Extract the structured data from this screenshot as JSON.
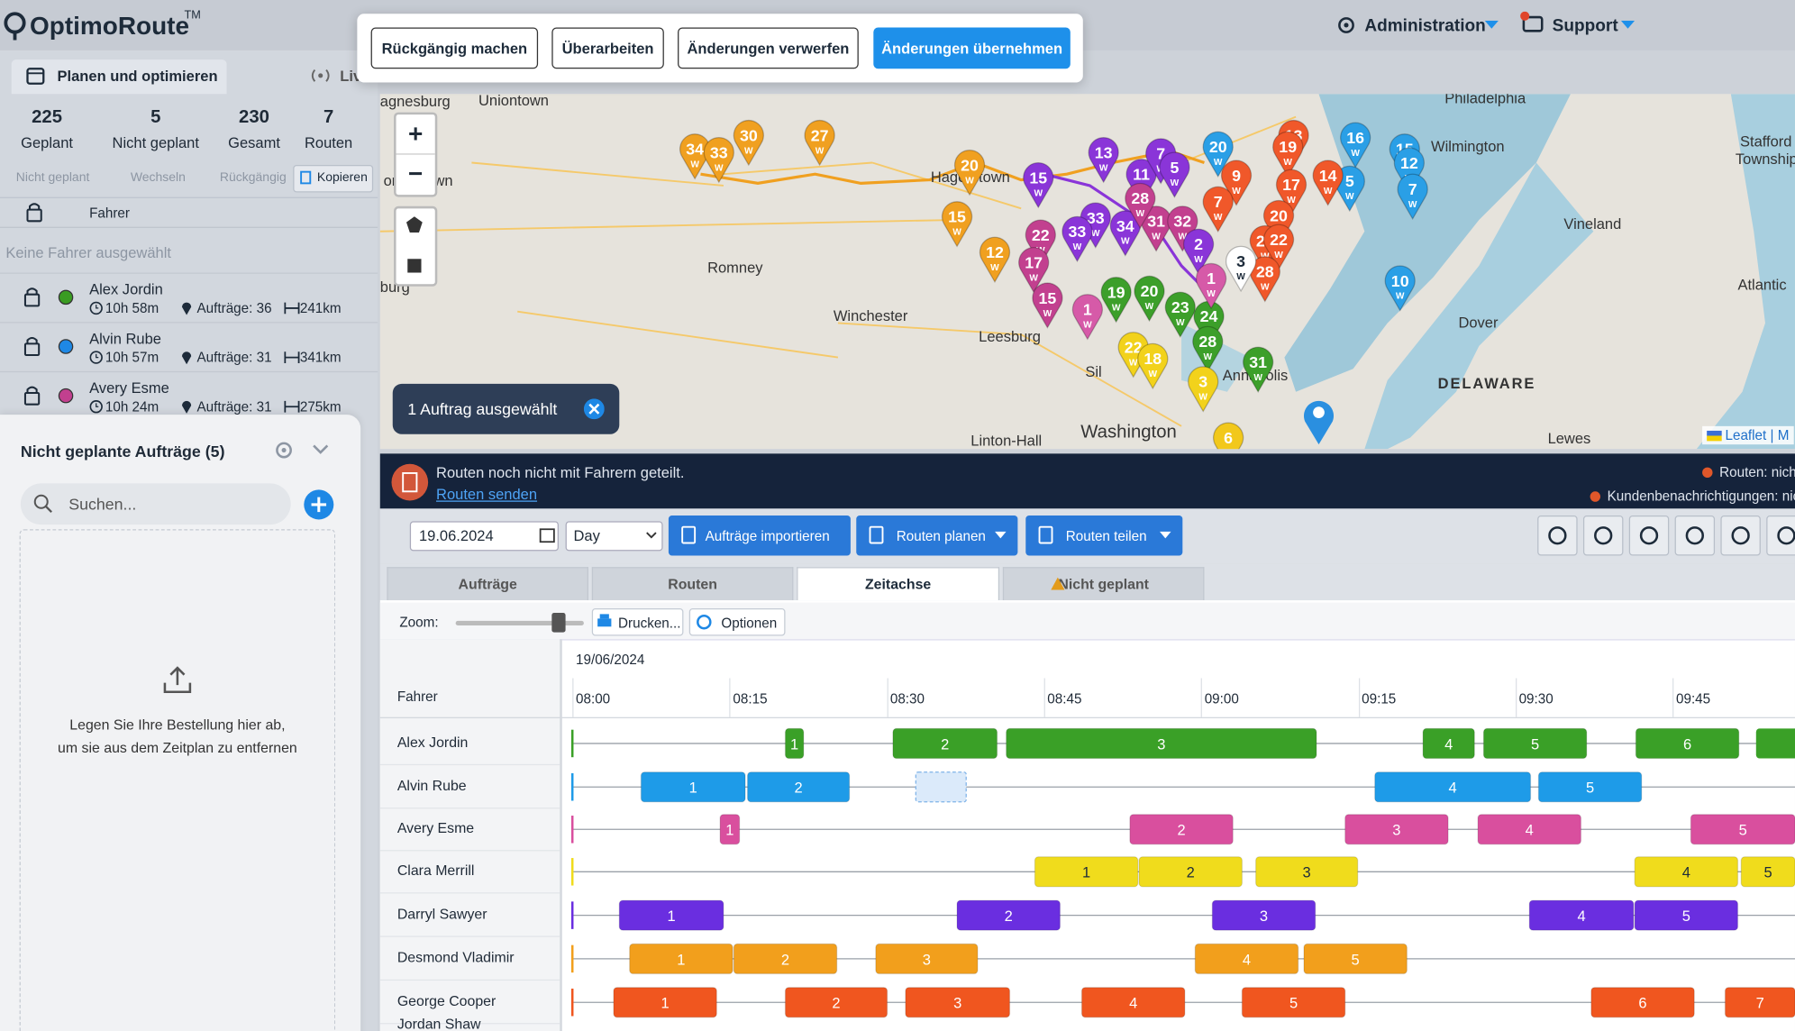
{
  "header": {
    "logo": "OptimoRoute",
    "trademark": "TM",
    "admin": "Administration",
    "support": "Support"
  },
  "toolbar": {
    "undo": "Rückgängig machen",
    "revise": "Überarbeiten",
    "discard": "Änderungen verwerfen",
    "apply": "Änderungen übernehmen"
  },
  "sidebar": {
    "tabs": [
      "Planen und optimieren",
      "Live"
    ],
    "stats": [
      {
        "value": "225",
        "label": "Geplant"
      },
      {
        "value": "5",
        "label": "Nicht geplant"
      },
      {
        "value": "230",
        "label": "Gesamt"
      },
      {
        "value": "7",
        "label": "Routen"
      }
    ],
    "actions": [
      "Nicht geplant",
      "Wechseln",
      "Rückgängig",
      "Kopieren"
    ],
    "driver_header": "Fahrer",
    "no_selection": "Keine Fahrer ausgewählt",
    "drivers": [
      {
        "name": "Alex Jordin",
        "time": "10h 58m",
        "orders": "Aufträge: 36",
        "distance": "241km",
        "color": "#3a9c22"
      },
      {
        "name": "Alvin Rube",
        "time": "10h 57m",
        "orders": "Aufträge: 31",
        "distance": "341km",
        "color": "#1e88e5"
      },
      {
        "name": "Avery Esme",
        "time": "10h 24m",
        "orders": "Aufträge: 31",
        "distance": "275km",
        "color": "#c2408f"
      }
    ]
  },
  "unplanned": {
    "title": "Nicht geplante Aufträge (5)",
    "search": "Suchen...",
    "drop_text": [
      "Legen Sie Ihre Bestellung hier ab,",
      "um sie aus dem Zeitplan zu entfernen"
    ]
  },
  "map": {
    "zoom_in": "+",
    "zoom_out": "−",
    "places": [
      "agnesburg",
      "Uniontown",
      "organtown",
      "Hagerstown",
      "Romney",
      "Winchester",
      "Leesburg",
      "Washington",
      "Linton-Hall",
      "Philadelphia",
      "Wilmington",
      "Vineland",
      "Dover",
      "DELAWARE",
      "Lewes",
      "Atlantic",
      "Stafford",
      "Township",
      "Annapolis",
      "Sil",
      "burg"
    ],
    "pin_suffix": "W",
    "pins": [
      {
        "label": "34",
        "color": "#f0a020"
      },
      {
        "label": "33",
        "color": "#f0a020"
      },
      {
        "label": "30",
        "color": "#f0a020"
      },
      {
        "label": "27",
        "color": "#f0a020"
      },
      {
        "label": "20",
        "color": "#f0a020"
      },
      {
        "label": "15",
        "color": "#f0a020"
      },
      {
        "label": "12",
        "color": "#f0a020"
      },
      {
        "label": "13",
        "color": "#8a35d8"
      },
      {
        "label": "11",
        "color": "#8a35d8"
      },
      {
        "label": "7",
        "color": "#8a35d8"
      },
      {
        "label": "5",
        "color": "#8a35d8"
      },
      {
        "label": "15",
        "color": "#8a35d8"
      },
      {
        "label": "33",
        "color": "#8a35d8"
      },
      {
        "label": "33",
        "color": "#8a35d8"
      },
      {
        "label": "34",
        "color": "#8a35d8"
      },
      {
        "label": "31",
        "color": "#c2408f"
      },
      {
        "label": "32",
        "color": "#c2408f"
      },
      {
        "label": "28",
        "color": "#c2408f"
      },
      {
        "label": "22",
        "color": "#c2408f"
      },
      {
        "label": "17",
        "color": "#c2408f"
      },
      {
        "label": "15",
        "color": "#c2408f"
      },
      {
        "label": "2",
        "color": "#8a35d8"
      },
      {
        "label": "20",
        "color": "#2a9fe6"
      },
      {
        "label": "16",
        "color": "#2a9fe6"
      },
      {
        "label": "15",
        "color": "#2a9fe6"
      },
      {
        "label": "12",
        "color": "#2a9fe6"
      },
      {
        "label": "7",
        "color": "#2a9fe6"
      },
      {
        "label": "5",
        "color": "#2a9fe6"
      },
      {
        "label": "10",
        "color": "#2a9fe6"
      },
      {
        "label": "13",
        "color": "#f0582a"
      },
      {
        "label": "19",
        "color": "#f0582a"
      },
      {
        "label": "9",
        "color": "#f0582a"
      },
      {
        "label": "17",
        "color": "#f0582a"
      },
      {
        "label": "14",
        "color": "#f0582a"
      },
      {
        "label": "7",
        "color": "#f0582a"
      },
      {
        "label": "20",
        "color": "#f0582a"
      },
      {
        "label": "28",
        "color": "#f0582a"
      },
      {
        "label": "22",
        "color": "#f0582a"
      },
      {
        "label": "28",
        "color": "#f0582a"
      },
      {
        "label": "6",
        "color": "#f2c81b"
      },
      {
        "label": "19",
        "color": "#3c9f2a"
      },
      {
        "label": "20",
        "color": "#3c9f2a"
      },
      {
        "label": "23",
        "color": "#3c9f2a"
      },
      {
        "label": "24",
        "color": "#3c9f2a"
      },
      {
        "label": "28",
        "color": "#3c9f2a"
      },
      {
        "label": "31",
        "color": "#3c9f2a"
      },
      {
        "label": "1",
        "color": "#d65aa8"
      },
      {
        "label": "1",
        "color": "#d65aa8"
      },
      {
        "label": "22",
        "color": "#f2d21b"
      },
      {
        "label": "18",
        "color": "#f2d21b"
      },
      {
        "label": "3",
        "color": "#f2d21b"
      },
      {
        "label": "3",
        "color": "#ffffff"
      }
    ],
    "selection": "1 Auftrag ausgewählt",
    "attribution": "Leaflet | M"
  },
  "banner": {
    "text": "Routen noch nicht mit Fahrern geteilt.",
    "link": "Routen senden",
    "status_routes": "Routen: nicht",
    "status_notifications": "Kundenbenachrichtigungen: nicht"
  },
  "controls": {
    "date": "19.06.2024",
    "view": "Day",
    "import": "Aufträge importieren",
    "plan": "Routen planen",
    "share": "Routen teilen"
  },
  "tabs": [
    "Aufträge",
    "Routen",
    "Zeitachse",
    "Nicht geplant"
  ],
  "timeline": {
    "zoom": "Zoom:",
    "print": "Drucken...",
    "options": "Optionen",
    "date": "19/06/2024",
    "driver_header": "Fahrer",
    "times": [
      "08:00",
      "08:15",
      "08:30",
      "08:45",
      "09:00",
      "09:15",
      "09:30",
      "09:45"
    ],
    "rows": [
      {
        "name": "Alex Jordin",
        "color": "#3aa027",
        "blocks": [
          "1",
          "2",
          "3",
          "4",
          "5",
          "6"
        ]
      },
      {
        "name": "Alvin Rube",
        "color": "#1e9be8",
        "blocks": [
          "1",
          "2",
          "4",
          "5"
        ]
      },
      {
        "name": "Avery Esme",
        "color": "#d94f9e",
        "blocks": [
          "1",
          "2",
          "3",
          "4",
          "5"
        ]
      },
      {
        "name": "Clara Merrill",
        "color": "#f0dc1c",
        "blocks": [
          "1",
          "2",
          "3",
          "4",
          "5"
        ]
      },
      {
        "name": "Darryl Sawyer",
        "color": "#6a2ee0",
        "blocks": [
          "1",
          "2",
          "3",
          "4",
          "5"
        ]
      },
      {
        "name": "Desmond Vladimir",
        "color": "#f29f1c",
        "blocks": [
          "1",
          "2",
          "3",
          "4",
          "5"
        ]
      },
      {
        "name": "George Cooper",
        "color": "#f0561f",
        "blocks": [
          "1",
          "2",
          "3",
          "4",
          "5",
          "6",
          "7"
        ]
      },
      {
        "name": "Jordan Shaw",
        "color": "#888888",
        "blocks": []
      }
    ]
  }
}
